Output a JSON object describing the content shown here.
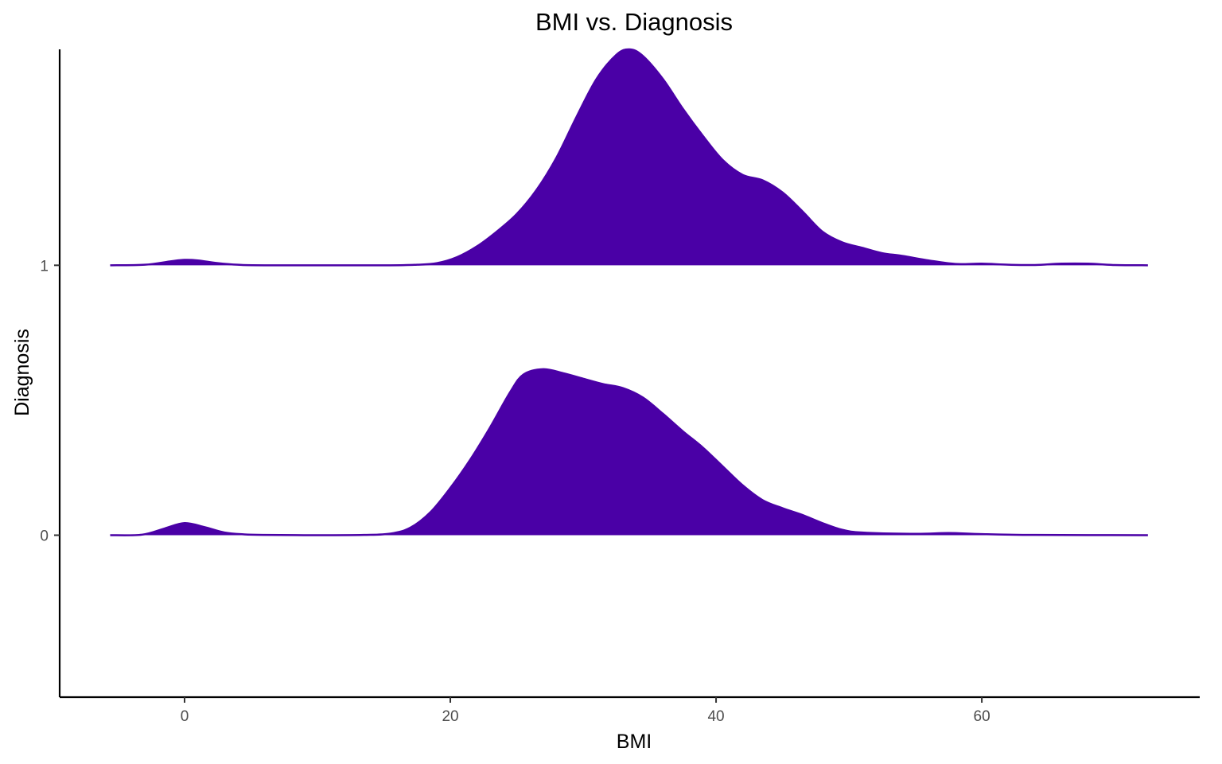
{
  "colors": {
    "fill": "#4A00A6",
    "outline": "#4A00A6",
    "axis": "#000000",
    "tick_text": "#4d4d4d"
  },
  "chart_data": {
    "type": "ridgeline",
    "title": "BMI vs. Diagnosis",
    "xlabel": "BMI",
    "ylabel": "Diagnosis",
    "xlim": [
      -9.4,
      76.4
    ],
    "ylim": [
      -0.6,
      1.8
    ],
    "x_ticks": [
      0,
      20,
      40,
      60
    ],
    "y_ticks": [
      "0",
      "1"
    ],
    "grid": false,
    "legend": "none",
    "series": [
      {
        "category": "0",
        "baseline": 0,
        "points": [
          [
            -5.6,
            0
          ],
          [
            -3.2,
            0.002
          ],
          [
            -1.5,
            0.025
          ],
          [
            0,
            0.045
          ],
          [
            1.5,
            0.03
          ],
          [
            3,
            0.01
          ],
          [
            4.5,
            0.003
          ],
          [
            6,
            0.001
          ],
          [
            10,
            0
          ],
          [
            13.5,
            0.001
          ],
          [
            15.5,
            0.006
          ],
          [
            17,
            0.028
          ],
          [
            18.5,
            0.085
          ],
          [
            20,
            0.175
          ],
          [
            21.5,
            0.28
          ],
          [
            23,
            0.4
          ],
          [
            24.5,
            0.53
          ],
          [
            25.5,
            0.595
          ],
          [
            27,
            0.615
          ],
          [
            28.5,
            0.6
          ],
          [
            30,
            0.58
          ],
          [
            31.5,
            0.56
          ],
          [
            33,
            0.545
          ],
          [
            34.5,
            0.51
          ],
          [
            36,
            0.45
          ],
          [
            37.5,
            0.385
          ],
          [
            39,
            0.325
          ],
          [
            40.5,
            0.255
          ],
          [
            42,
            0.185
          ],
          [
            43.5,
            0.13
          ],
          [
            45,
            0.1
          ],
          [
            46.5,
            0.075
          ],
          [
            48,
            0.045
          ],
          [
            49.5,
            0.02
          ],
          [
            51,
            0.01
          ],
          [
            55,
            0.005
          ],
          [
            57.5,
            0.008
          ],
          [
            60,
            0.004
          ],
          [
            64,
            0.001
          ],
          [
            72.5,
            0
          ]
        ]
      },
      {
        "category": "1",
        "baseline": 1,
        "points": [
          [
            -5.6,
            0
          ],
          [
            -3,
            0.002
          ],
          [
            -1,
            0.015
          ],
          [
            0,
            0.02
          ],
          [
            1,
            0.018
          ],
          [
            2.5,
            0.008
          ],
          [
            4,
            0.002
          ],
          [
            6,
            0
          ],
          [
            15,
            0
          ],
          [
            17.5,
            0.002
          ],
          [
            19,
            0.008
          ],
          [
            20.5,
            0.03
          ],
          [
            22,
            0.07
          ],
          [
            23.5,
            0.125
          ],
          [
            25,
            0.19
          ],
          [
            26.5,
            0.28
          ],
          [
            28,
            0.4
          ],
          [
            29.5,
            0.55
          ],
          [
            31,
            0.69
          ],
          [
            32.5,
            0.78
          ],
          [
            33.5,
            0.8
          ],
          [
            34.5,
            0.775
          ],
          [
            36,
            0.69
          ],
          [
            37.5,
            0.58
          ],
          [
            39,
            0.48
          ],
          [
            40.5,
            0.39
          ],
          [
            42,
            0.335
          ],
          [
            43.5,
            0.315
          ],
          [
            45,
            0.27
          ],
          [
            46.5,
            0.2
          ],
          [
            48,
            0.125
          ],
          [
            49.5,
            0.085
          ],
          [
            51,
            0.065
          ],
          [
            52.5,
            0.045
          ],
          [
            54,
            0.035
          ],
          [
            56,
            0.018
          ],
          [
            58,
            0.005
          ],
          [
            60,
            0.006
          ],
          [
            62,
            0.002
          ],
          [
            64,
            0.001
          ],
          [
            66,
            0.006
          ],
          [
            68,
            0.006
          ],
          [
            70,
            0.001
          ],
          [
            72.5,
            0
          ]
        ]
      }
    ]
  }
}
